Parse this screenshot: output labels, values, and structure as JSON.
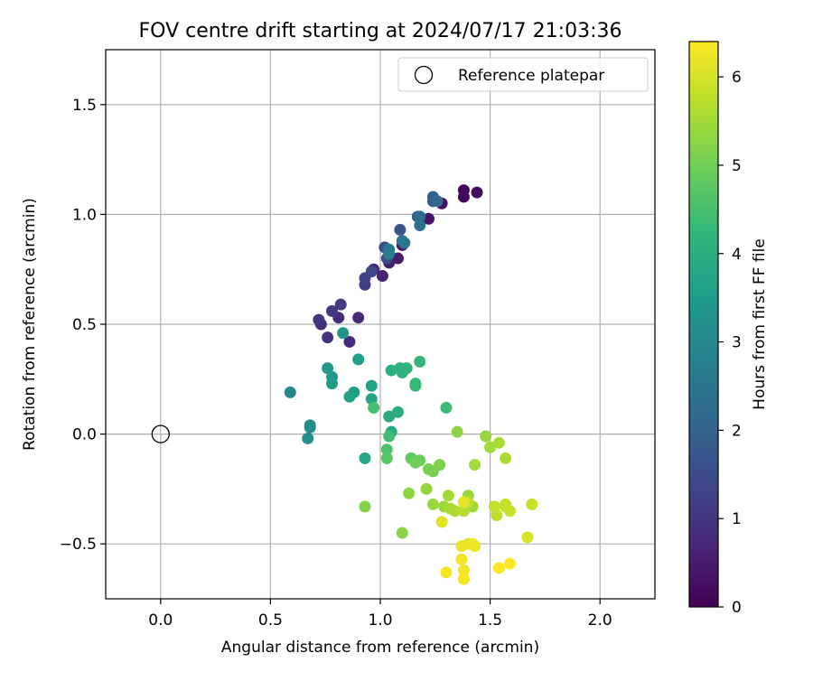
{
  "chart_data": {
    "type": "scatter",
    "title": "FOV centre drift starting at 2024/07/17 21:03:36",
    "xlabel": "Angular distance from reference (arcmin)",
    "ylabel": "Rotation from reference (arcmin)",
    "xlim": [
      -0.25,
      2.25
    ],
    "ylim": [
      -0.75,
      1.75
    ],
    "x_ticks": [
      0.0,
      0.5,
      1.0,
      1.5,
      2.0
    ],
    "x_tick_labels": [
      "0.0",
      "0.5",
      "1.0",
      "1.5",
      "2.0"
    ],
    "y_ticks": [
      -0.5,
      0.0,
      0.5,
      1.0,
      1.5
    ],
    "y_tick_labels": [
      "−0.5",
      "0.0",
      "0.5",
      "1.0",
      "1.5"
    ],
    "grid": true,
    "legend": {
      "placement": "upper-right",
      "entries": [
        "Reference platepar"
      ]
    },
    "reference_point": {
      "x": 0.0,
      "y": 0.0,
      "marker": "open-circle"
    },
    "colorbar": {
      "label": "Hours from first FF file",
      "colormap": "viridis",
      "range": [
        0,
        6.4
      ],
      "ticks": [
        0,
        1,
        2,
        3,
        4,
        5,
        6
      ],
      "tick_labels": [
        "0",
        "1",
        "2",
        "3",
        "4",
        "5",
        "6"
      ],
      "color_stops": [
        "#440154",
        "#482878",
        "#3e4989",
        "#31688e",
        "#26828e",
        "#1f9e89",
        "#35b779",
        "#6ece58",
        "#b5de2b",
        "#fde725"
      ]
    },
    "points": [
      {
        "x": 1.38,
        "y": 1.11,
        "h": 0.1
      },
      {
        "x": 1.44,
        "y": 1.1,
        "h": 0.2
      },
      {
        "x": 1.38,
        "y": 1.08,
        "h": 0.15
      },
      {
        "x": 1.28,
        "y": 1.05,
        "h": 0.3
      },
      {
        "x": 1.22,
        "y": 0.98,
        "h": 0.35
      },
      {
        "x": 1.1,
        "y": 0.86,
        "h": 0.45
      },
      {
        "x": 1.08,
        "y": 0.8,
        "h": 0.5
      },
      {
        "x": 1.04,
        "y": 0.78,
        "h": 0.55
      },
      {
        "x": 1.01,
        "y": 0.72,
        "h": 0.6
      },
      {
        "x": 0.97,
        "y": 0.75,
        "h": 0.65
      },
      {
        "x": 0.9,
        "y": 0.53,
        "h": 0.7
      },
      {
        "x": 0.86,
        "y": 0.42,
        "h": 0.75
      },
      {
        "x": 0.81,
        "y": 0.53,
        "h": 0.8
      },
      {
        "x": 0.73,
        "y": 0.5,
        "h": 0.85
      },
      {
        "x": 0.76,
        "y": 0.44,
        "h": 0.9
      },
      {
        "x": 0.72,
        "y": 0.52,
        "h": 1.0
      },
      {
        "x": 0.78,
        "y": 0.56,
        "h": 1.05
      },
      {
        "x": 0.82,
        "y": 0.59,
        "h": 1.1
      },
      {
        "x": 0.93,
        "y": 0.68,
        "h": 1.2
      },
      {
        "x": 0.93,
        "y": 0.71,
        "h": 1.3
      },
      {
        "x": 0.96,
        "y": 0.74,
        "h": 1.4
      },
      {
        "x": 1.03,
        "y": 0.8,
        "h": 1.5
      },
      {
        "x": 1.02,
        "y": 0.85,
        "h": 1.6
      },
      {
        "x": 1.09,
        "y": 0.93,
        "h": 1.7
      },
      {
        "x": 1.17,
        "y": 0.99,
        "h": 1.8
      },
      {
        "x": 1.24,
        "y": 1.06,
        "h": 1.9
      },
      {
        "x": 1.24,
        "y": 1.08,
        "h": 2.0
      },
      {
        "x": 1.26,
        "y": 1.06,
        "h": 2.1
      },
      {
        "x": 1.18,
        "y": 0.99,
        "h": 2.2
      },
      {
        "x": 1.18,
        "y": 0.95,
        "h": 2.3
      },
      {
        "x": 1.1,
        "y": 0.88,
        "h": 2.4
      },
      {
        "x": 1.11,
        "y": 0.87,
        "h": 2.5
      },
      {
        "x": 1.04,
        "y": 0.84,
        "h": 2.6
      },
      {
        "x": 1.04,
        "y": 0.82,
        "h": 2.7
      },
      {
        "x": 0.59,
        "y": 0.19,
        "h": 3.0
      },
      {
        "x": 0.68,
        "y": 0.03,
        "h": 3.1
      },
      {
        "x": 0.68,
        "y": 0.04,
        "h": 3.15
      },
      {
        "x": 0.67,
        "y": -0.02,
        "h": 3.2
      },
      {
        "x": 0.83,
        "y": 0.46,
        "h": 3.3
      },
      {
        "x": 0.78,
        "y": 0.26,
        "h": 3.4
      },
      {
        "x": 0.76,
        "y": 0.3,
        "h": 3.45
      },
      {
        "x": 0.78,
        "y": 0.23,
        "h": 3.5
      },
      {
        "x": 0.9,
        "y": 0.34,
        "h": 3.55
      },
      {
        "x": 0.88,
        "y": 0.19,
        "h": 3.6
      },
      {
        "x": 0.86,
        "y": 0.17,
        "h": 3.65
      },
      {
        "x": 0.96,
        "y": 0.22,
        "h": 3.7
      },
      {
        "x": 0.96,
        "y": 0.16,
        "h": 3.75
      },
      {
        "x": 0.93,
        "y": -0.11,
        "h": 3.8
      },
      {
        "x": 1.05,
        "y": 0.01,
        "h": 3.85
      },
      {
        "x": 1.04,
        "y": 0.08,
        "h": 3.9
      },
      {
        "x": 1.08,
        "y": 0.1,
        "h": 3.95
      },
      {
        "x": 1.05,
        "y": 0.29,
        "h": 4.0
      },
      {
        "x": 1.09,
        "y": 0.3,
        "h": 4.05
      },
      {
        "x": 1.1,
        "y": 0.28,
        "h": 4.1
      },
      {
        "x": 1.12,
        "y": 0.3,
        "h": 4.15
      },
      {
        "x": 1.18,
        "y": 0.33,
        "h": 4.2
      },
      {
        "x": 1.16,
        "y": 0.22,
        "h": 4.25
      },
      {
        "x": 1.16,
        "y": 0.23,
        "h": 4.3
      },
      {
        "x": 1.3,
        "y": 0.12,
        "h": 4.35
      },
      {
        "x": 1.04,
        "y": -0.01,
        "h": 4.4
      },
      {
        "x": 0.97,
        "y": 0.12,
        "h": 4.5
      },
      {
        "x": 1.03,
        "y": -0.07,
        "h": 4.6
      },
      {
        "x": 1.03,
        "y": -0.11,
        "h": 4.7
      },
      {
        "x": 1.14,
        "y": -0.11,
        "h": 4.8
      },
      {
        "x": 1.18,
        "y": -0.12,
        "h": 4.9
      },
      {
        "x": 1.16,
        "y": -0.13,
        "h": 5.0
      },
      {
        "x": 1.22,
        "y": -0.16,
        "h": 5.05
      },
      {
        "x": 1.24,
        "y": -0.17,
        "h": 5.1
      },
      {
        "x": 1.27,
        "y": -0.14,
        "h": 5.15
      },
      {
        "x": 0.93,
        "y": -0.33,
        "h": 5.2
      },
      {
        "x": 1.1,
        "y": -0.45,
        "h": 5.25
      },
      {
        "x": 1.13,
        "y": -0.27,
        "h": 5.3
      },
      {
        "x": 1.21,
        "y": -0.25,
        "h": 5.35
      },
      {
        "x": 1.24,
        "y": -0.32,
        "h": 5.4
      },
      {
        "x": 1.29,
        "y": -0.33,
        "h": 5.45
      },
      {
        "x": 1.31,
        "y": -0.28,
        "h": 5.5
      },
      {
        "x": 1.32,
        "y": -0.34,
        "h": 5.55
      },
      {
        "x": 1.34,
        "y": -0.35,
        "h": 5.6
      },
      {
        "x": 1.35,
        "y": 0.01,
        "h": 5.3
      },
      {
        "x": 1.4,
        "y": -0.28,
        "h": 5.4
      },
      {
        "x": 1.42,
        "y": -0.33,
        "h": 5.45
      },
      {
        "x": 1.43,
        "y": -0.14,
        "h": 5.5
      },
      {
        "x": 1.48,
        "y": -0.01,
        "h": 5.4
      },
      {
        "x": 1.5,
        "y": -0.06,
        "h": 5.5
      },
      {
        "x": 1.54,
        "y": -0.04,
        "h": 5.55
      },
      {
        "x": 1.57,
        "y": -0.11,
        "h": 5.6
      },
      {
        "x": 1.38,
        "y": -0.35,
        "h": 5.7
      },
      {
        "x": 1.4,
        "y": -0.31,
        "h": 5.75
      },
      {
        "x": 1.52,
        "y": -0.33,
        "h": 5.8
      },
      {
        "x": 1.53,
        "y": -0.37,
        "h": 5.8
      },
      {
        "x": 1.57,
        "y": -0.32,
        "h": 5.85
      },
      {
        "x": 1.57,
        "y": -0.33,
        "h": 5.85
      },
      {
        "x": 1.59,
        "y": -0.35,
        "h": 5.9
      },
      {
        "x": 1.69,
        "y": -0.32,
        "h": 5.9
      },
      {
        "x": 1.67,
        "y": -0.47,
        "h": 6.0
      },
      {
        "x": 1.28,
        "y": -0.4,
        "h": 6.1
      },
      {
        "x": 1.38,
        "y": -0.31,
        "h": 6.15
      },
      {
        "x": 1.37,
        "y": -0.51,
        "h": 6.2
      },
      {
        "x": 1.4,
        "y": -0.5,
        "h": 6.2
      },
      {
        "x": 1.42,
        "y": -0.5,
        "h": 6.25
      },
      {
        "x": 1.43,
        "y": -0.51,
        "h": 6.25
      },
      {
        "x": 1.37,
        "y": -0.57,
        "h": 6.3
      },
      {
        "x": 1.38,
        "y": -0.62,
        "h": 6.3
      },
      {
        "x": 1.38,
        "y": -0.66,
        "h": 6.35
      },
      {
        "x": 1.3,
        "y": -0.63,
        "h": 6.35
      },
      {
        "x": 1.54,
        "y": -0.61,
        "h": 6.4
      },
      {
        "x": 1.59,
        "y": -0.59,
        "h": 6.4
      }
    ]
  }
}
